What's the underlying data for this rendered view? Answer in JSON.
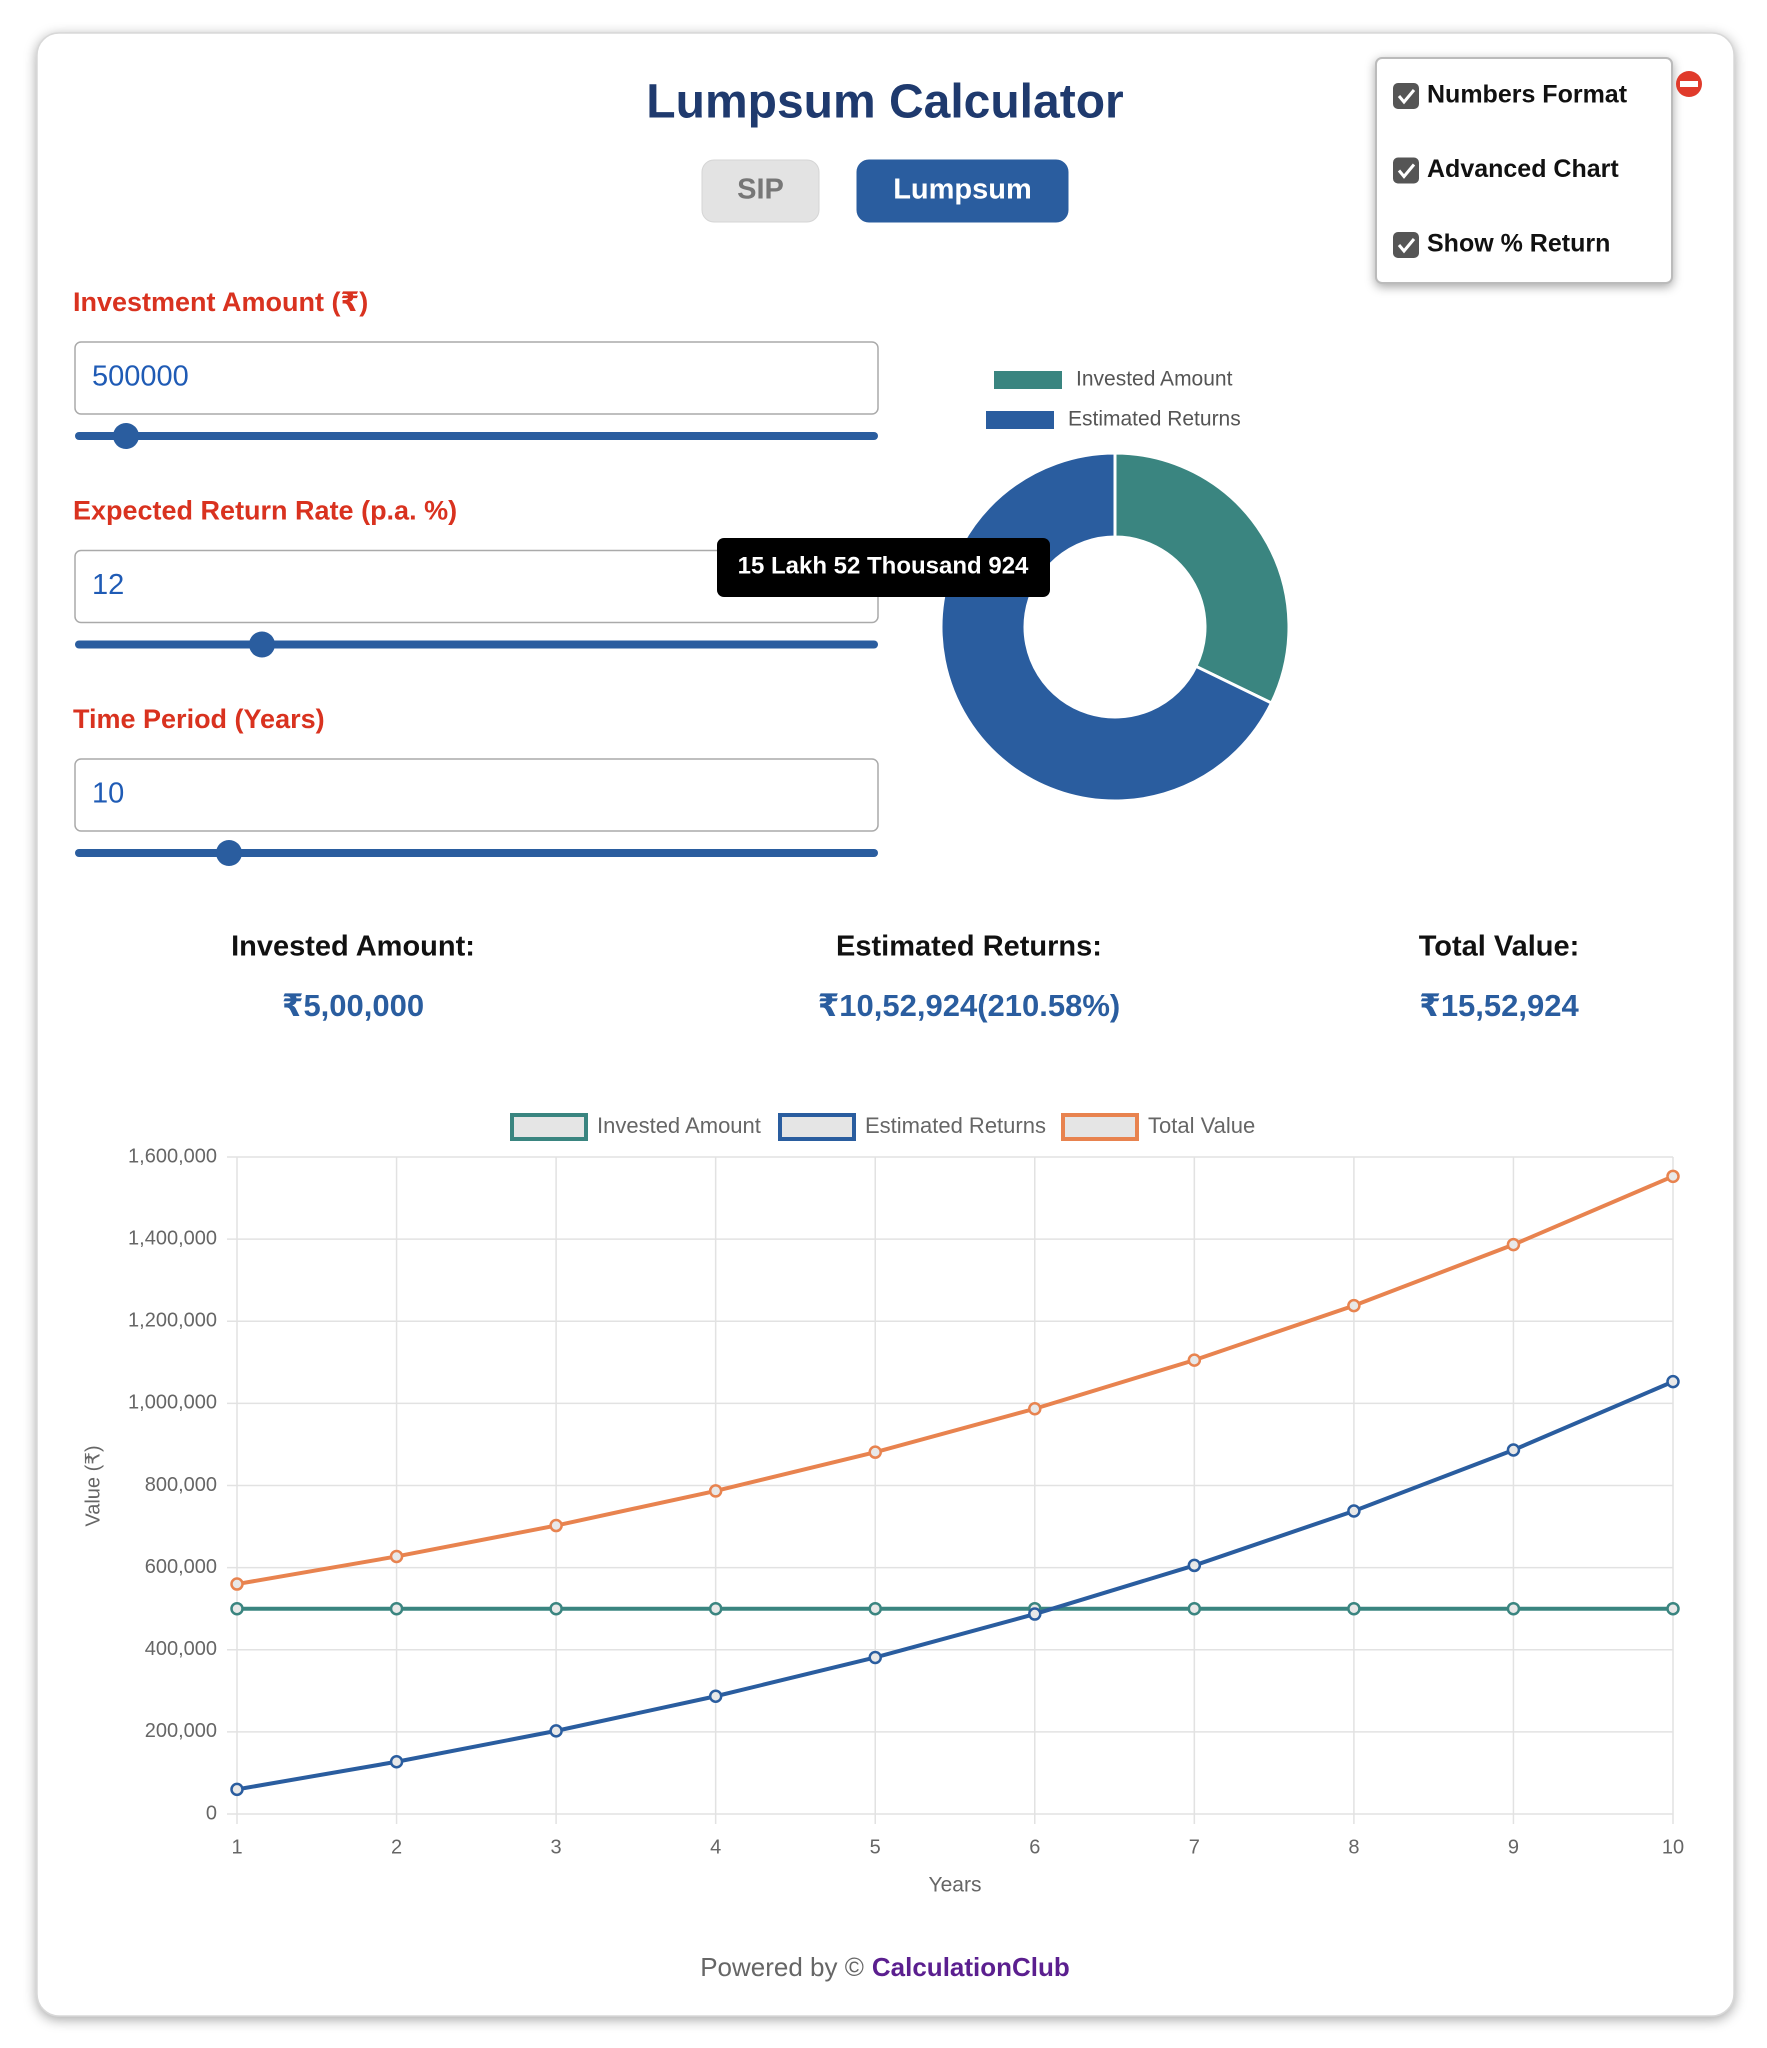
{
  "header": {
    "title": "Lumpsum Calculator",
    "tabs": [
      {
        "label": "SIP",
        "active": false
      },
      {
        "label": "Lumpsum",
        "active": true
      }
    ]
  },
  "settings": [
    {
      "label": "Numbers Format",
      "checked": true
    },
    {
      "label": "Advanced Chart",
      "checked": true
    },
    {
      "label": "Show % Return",
      "checked": true
    }
  ],
  "inputs": [
    {
      "label": "Investment Amount (₹)",
      "value": "500000"
    },
    {
      "label": "Expected Return Rate (p.a. %)",
      "value": "12"
    },
    {
      "label": "Time Period (Years)",
      "value": "10"
    }
  ],
  "summary": [
    {
      "label": "Invested Amount:",
      "value": "₹5,00,000"
    },
    {
      "label": "Estimated Returns:",
      "value": "₹10,52,924(210.58%)"
    },
    {
      "label": "Total Value:",
      "value": "₹15,52,924"
    }
  ],
  "chart_data": [
    {
      "type": "doughnut",
      "categories": [
        "Invested Amount",
        "Estimated Returns"
      ],
      "values": [
        500000,
        1052924
      ],
      "colors": [
        "#3a8580",
        "#2a5d9f"
      ],
      "tooltip": "15 Lakh 52 Thousand 924"
    },
    {
      "type": "line",
      "x": [
        1,
        2,
        3,
        4,
        5,
        6,
        7,
        8,
        9,
        10
      ],
      "xlim": [
        1,
        10
      ],
      "xticks": [
        1,
        2,
        3,
        4,
        5,
        6,
        7,
        8,
        9,
        10
      ],
      "ylim": [
        0,
        1600000
      ],
      "yticks": [
        0,
        {
          "value": 200000,
          "label": "200,000"
        },
        {
          "value": 400000,
          "label": "400,000"
        },
        {
          "value": 600000,
          "label": "600,000"
        },
        {
          "value": 800000,
          "label": "800,000"
        },
        {
          "value": 1000000,
          "label": "1,000,000"
        },
        {
          "value": 1200000,
          "label": "1,200,000"
        },
        {
          "value": 1400000,
          "label": "1,400,000"
        },
        {
          "value": 1600000,
          "label": "1,600,000"
        }
      ],
      "xlabel": "Years",
      "ylabel": "Value (₹)",
      "grid": true,
      "series": [
        {
          "name": "Invested Amount",
          "color": "#3a8580",
          "values": [
            500000,
            500000,
            500000,
            500000,
            500000,
            500000,
            500000,
            500000,
            500000,
            500000
          ]
        },
        {
          "name": "Estimated Returns",
          "color": "#2a5d9f",
          "values": [
            60000,
            127200,
            202464,
            286760,
            381171,
            486911,
            605342,
            737983,
            886541,
            1052924
          ]
        },
        {
          "name": "Total Value",
          "color": "#e8834f",
          "values": [
            560000,
            627200,
            702464,
            786760,
            881171,
            986911,
            1105342,
            1237983,
            1386541,
            1552924
          ]
        }
      ]
    }
  ],
  "footer": {
    "text": "Powered by ©",
    "brand": "CalculationClub"
  }
}
